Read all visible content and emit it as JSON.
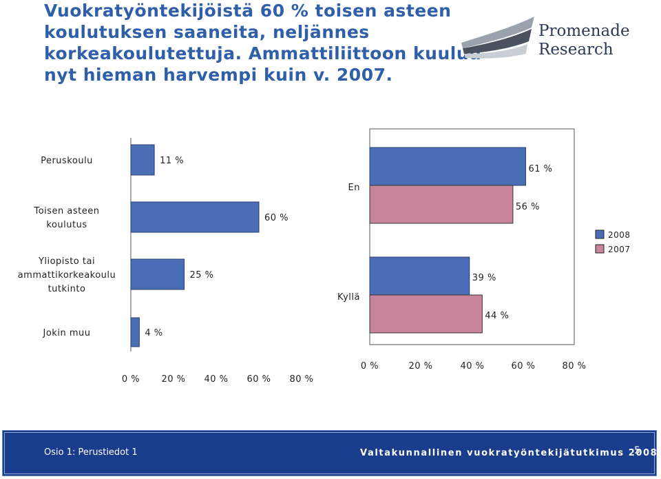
{
  "slide": {
    "title_lines": [
      "Vuokratyöntekijöistä 60 % toisen asteen",
      "koulutuksen saaneita, neljännes",
      "korkeakoulutettuja. Ammattiliittoon kuuluu",
      "nyt hieman harvempi kuin v. 2007."
    ],
    "logo_lines": [
      "Promenade",
      "Research"
    ]
  },
  "footer": {
    "left": "Osio 1: Perustiedot 1",
    "center": "Valtakunnallinen vuokratyöntekijätutkimus 2008",
    "page": "5"
  },
  "colors": {
    "series_2008": "#4a6db5",
    "series_2007": "#c8849a",
    "footer_bg": "#1a3c8c",
    "title": "#2f5fa8"
  },
  "chart_data": [
    {
      "type": "bar",
      "orientation": "horizontal",
      "categories": [
        "Peruskoulu",
        "Toisen asteen koulutus",
        "Yliopisto tai ammattikorkeakoulu tutkinto",
        "Jokin muu"
      ],
      "category_label_lines": [
        [
          "Peruskoulu"
        ],
        [
          "Toisen asteen",
          "koulutus"
        ],
        [
          "Yliopisto tai",
          "ammattikorkeakoulu",
          "tutkinto"
        ],
        [
          "Jokin muu"
        ]
      ],
      "values": [
        11,
        60,
        25,
        4
      ],
      "value_labels": [
        "11 %",
        "60 %",
        "25 %",
        "4 %"
      ],
      "xlim": [
        0,
        80
      ],
      "xticks": [
        "0 %",
        "20 %",
        "40 %",
        "60 %",
        "80 %"
      ]
    },
    {
      "type": "bar",
      "orientation": "horizontal",
      "categories": [
        "En",
        "Kyllä"
      ],
      "series": [
        {
          "name": "2008",
          "values": [
            61,
            39
          ],
          "value_labels": [
            "61 %",
            "39 %"
          ]
        },
        {
          "name": "2007",
          "values": [
            56,
            44
          ],
          "value_labels": [
            "56 %",
            "44 %"
          ]
        }
      ],
      "xlim": [
        0,
        80
      ],
      "xticks": [
        "0 %",
        "20 %",
        "40 %",
        "60 %",
        "80 %"
      ],
      "legend": "right"
    }
  ]
}
